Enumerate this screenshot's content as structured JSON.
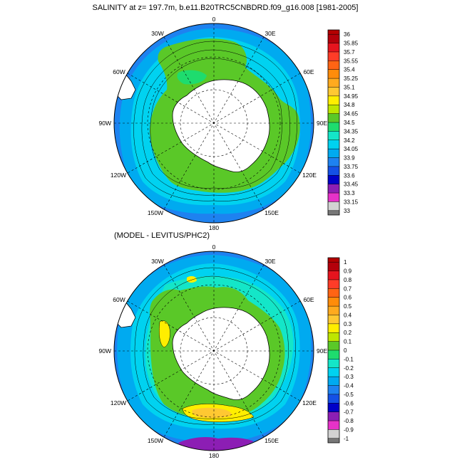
{
  "panels": [
    {
      "id": "top",
      "title": "SALINITY at z= 197.7m, b.e11.B20TRC5CNBDRD.f09_g16.008 [1981-2005]",
      "longitude_labels": [
        "0",
        "30E",
        "60E",
        "90E",
        "120E",
        "150E",
        "180",
        "150W",
        "120W",
        "90W",
        "60W",
        "30W"
      ],
      "colorbar": {
        "labels": [
          "36",
          "35.85",
          "35.7",
          "35.55",
          "35.4",
          "35.25",
          "35.1",
          "34.95",
          "34.8",
          "34.65",
          "34.5",
          "34.35",
          "34.2",
          "34.05",
          "33.9",
          "33.75",
          "33.6",
          "33.45",
          "33.3",
          "33.15",
          "33"
        ],
        "colors": [
          "#b4000a",
          "#e6141e",
          "#ff3c28",
          "#ff6414",
          "#ff8c0a",
          "#ffaa1e",
          "#ffc832",
          "#ffee00",
          "#bee600",
          "#5ac828",
          "#1edc6e",
          "#14e6c8",
          "#00d2f0",
          "#00aaf0",
          "#1e82f0",
          "#1450e6",
          "#0000c8",
          "#8c1eb4",
          "#e632c8",
          "#d2d2d2"
        ],
        "top_color": "#b40000",
        "bottom_color": "#787878"
      }
    },
    {
      "id": "bottom",
      "title": "(MODEL - LEVITUS/PHC2)",
      "longitude_labels": [
        "0",
        "30E",
        "60E",
        "90E",
        "120E",
        "150E",
        "180",
        "150W",
        "120W",
        "90W",
        "60W",
        "30W"
      ],
      "colorbar": {
        "labels": [
          "1",
          "0.9",
          "0.8",
          "0.7",
          "0.6",
          "0.5",
          "0.4",
          "0.3",
          "0.2",
          "0.1",
          "0",
          "-0.1",
          "-0.2",
          "-0.3",
          "-0.4",
          "-0.5",
          "-0.6",
          "-0.7",
          "-0.8",
          "-0.9",
          "-1"
        ],
        "colors": [
          "#b4000a",
          "#e6141e",
          "#ff3c28",
          "#ff6414",
          "#ff8c0a",
          "#ffaa1e",
          "#ffc832",
          "#ffee00",
          "#bee600",
          "#5ac828",
          "#1edc6e",
          "#14e6c8",
          "#00d2f0",
          "#00aaf0",
          "#1e82f0",
          "#1450e6",
          "#0000c8",
          "#8c1eb4",
          "#e632c8",
          "#d2d2d2"
        ],
        "top_color": "#b40000",
        "bottom_color": "#787878"
      }
    }
  ],
  "colors": {
    "land": "#ffffff",
    "ocean_outer": "#1e82f0",
    "ocean_mid": "#00aaf0",
    "ocean_inner": "#00d2f0",
    "shelf": "#5ac828"
  }
}
